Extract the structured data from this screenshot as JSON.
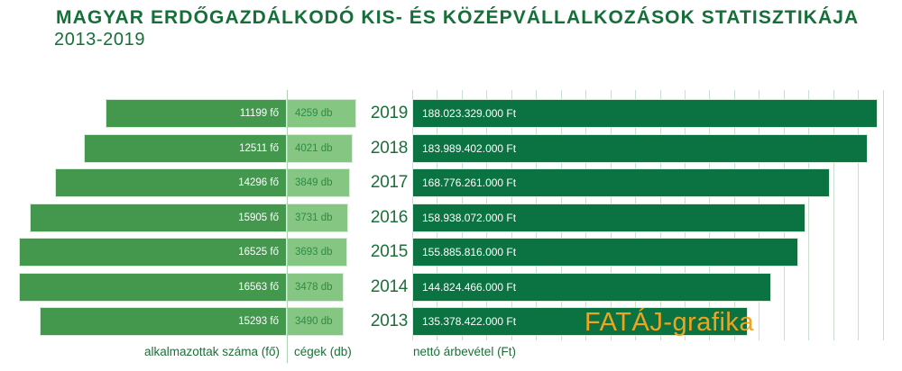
{
  "title": "MAGYAR ERDŐGAZDÁLKODÓ KIS- ÉS KÖZÉPVÁLLALKOZÁSOK STATISZTIKÁJA",
  "subtitle": "2013-2019",
  "watermark": "FATÁJ-grafika",
  "axis_labels": {
    "employees": "alkalmazottak száma (fő)",
    "companies": "cégek (db)",
    "revenue": "nettó árbevétel (Ft)"
  },
  "colors": {
    "title_green": "#156f39",
    "employees_bar": "#44984e",
    "companies_bar": "#85c683",
    "revenue_bar": "#0b7341",
    "gridline": "#c8e0cd",
    "companies_text": "#2e8b44",
    "bar_text": "#ffffff",
    "watermark_orange": "#f0a31e"
  },
  "chart_data": {
    "type": "bar",
    "orientation": "horizontal",
    "categories": [
      "2019",
      "2018",
      "2017",
      "2016",
      "2015",
      "2014",
      "2013"
    ],
    "series": [
      {
        "name": "alkalmazottak száma (fő)",
        "unit": "fő",
        "values": [
          11199,
          12511,
          14296,
          15905,
          16525,
          16563,
          15293
        ],
        "labels": [
          "11199 fő",
          "12511 fő",
          "14296 fő",
          "15905 fő",
          "16525 fő",
          "16563 fő",
          "15293 fő"
        ]
      },
      {
        "name": "cégek (db)",
        "unit": "db",
        "values": [
          4259,
          4021,
          3849,
          3731,
          3693,
          3478,
          3490
        ],
        "labels": [
          "4259 db",
          "4021 db",
          "3849 db",
          "3731 db",
          "3693 db",
          "3478 db",
          "3490 db"
        ]
      },
      {
        "name": "nettó árbevétel (Ft)",
        "unit": "Ft",
        "values": [
          188023329000,
          183989402000,
          168776261000,
          158938072000,
          155885816000,
          144824466000,
          135378422000
        ],
        "labels": [
          "188.023.329.000 Ft",
          "183.989.402.000 Ft",
          "168.776.261.000 Ft",
          "158.938.072.000 Ft",
          "155.885.816.000 Ft",
          "144.824.466.000 Ft",
          "135.378.422.000 Ft"
        ]
      }
    ],
    "axis": {
      "revenue_gridline_step": 10000000000,
      "revenue_gridline_max": 190000000000,
      "grid_on": true,
      "legend": "none"
    }
  }
}
